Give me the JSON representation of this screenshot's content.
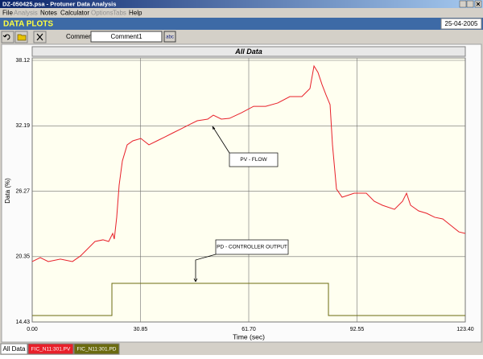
{
  "window": {
    "title": "DZ-050425.psa - Protuner Data Analysis",
    "date": "25-04-2005"
  },
  "menu": [
    {
      "label": "File",
      "enabled": true
    },
    {
      "label": "Analysis",
      "enabled": false
    },
    {
      "label": "Notes",
      "enabled": true
    },
    {
      "label": "Calculator",
      "enabled": true
    },
    {
      "label": "Options",
      "enabled": false
    },
    {
      "label": "Tabs",
      "enabled": false
    },
    {
      "label": "Help",
      "enabled": true
    }
  ],
  "header": "DATA PLOTS",
  "toolbar": {
    "comment_label": "Comment",
    "comment_value": "Comment1",
    "button": "abc"
  },
  "tabs": [
    "All Data"
  ],
  "chart_data": {
    "type": "line",
    "title": "All Data",
    "x_label": "Time (sec)",
    "y_label": "Data (%)",
    "xlim": [
      0,
      123.4
    ],
    "ylim": [
      14.43,
      38.12
    ],
    "xticks": [
      {
        "value": 0,
        "label": "0.00"
      },
      30.85,
      {
        "value": 61.7,
        "label": "61.70"
      },
      92.55,
      {
        "value": 123.4,
        "label": "123.40"
      }
    ],
    "yticks": [
      14.43,
      20.35,
      26.27,
      32.19,
      38.12
    ],
    "grid": true,
    "annotations": [
      "PV - FLOW",
      "PD - CONTROLLER OUTPUT"
    ],
    "series": [
      {
        "name": "FIC_N11:301.PV",
        "color": "#e8202a",
        "x": [
          0,
          2.29,
          4.59,
          8.03,
          11.47,
          13.76,
          15.6,
          17.89,
          20.18,
          21.79,
          22.94,
          23.39,
          24.08,
          24.77,
          25.69,
          27.06,
          28.67,
          30.96,
          33.26,
          35.55,
          37.85,
          40.14,
          42.43,
          44.73,
          47.02,
          50,
          51.61,
          53.9,
          56.2,
          59.64,
          63.08,
          66.52,
          69.96,
          73.4,
          76.84,
          79.14,
          80.29,
          81.43,
          82.58,
          83.72,
          84.87,
          85.56,
          86.7,
          88.31,
          91.75,
          95.19,
          97.48,
          99.78,
          103.22,
          105.51,
          106.66,
          107.81,
          110.1,
          112.39,
          114.69,
          116.98,
          119.27,
          121.57,
          123.4
        ],
        "values": [
          19.9,
          20.26,
          19.9,
          20.12,
          19.9,
          20.41,
          20.99,
          21.72,
          21.87,
          21.72,
          22.45,
          21.94,
          23.91,
          26.82,
          29.01,
          30.47,
          30.83,
          31.05,
          30.47,
          30.83,
          31.19,
          31.56,
          31.92,
          32.29,
          32.65,
          32.8,
          33.16,
          32.8,
          32.87,
          33.38,
          33.96,
          33.96,
          34.26,
          34.84,
          34.84,
          35.57,
          37.61,
          37.03,
          35.93,
          34.99,
          34.11,
          30.47,
          26.46,
          25.73,
          26.09,
          26.09,
          25.36,
          25,
          24.63,
          25.36,
          26.09,
          25,
          24.49,
          24.27,
          23.91,
          23.76,
          23.18,
          22.59,
          22.45
        ]
      },
      {
        "name": "FIC_N11:301.PD",
        "color": "#6b6b10",
        "x": [
          0,
          22.71,
          22.71,
          84.41,
          84.41,
          123.4
        ],
        "values": [
          15.01,
          15.01,
          17.93,
          17.93,
          15.01,
          15.01
        ]
      }
    ]
  }
}
